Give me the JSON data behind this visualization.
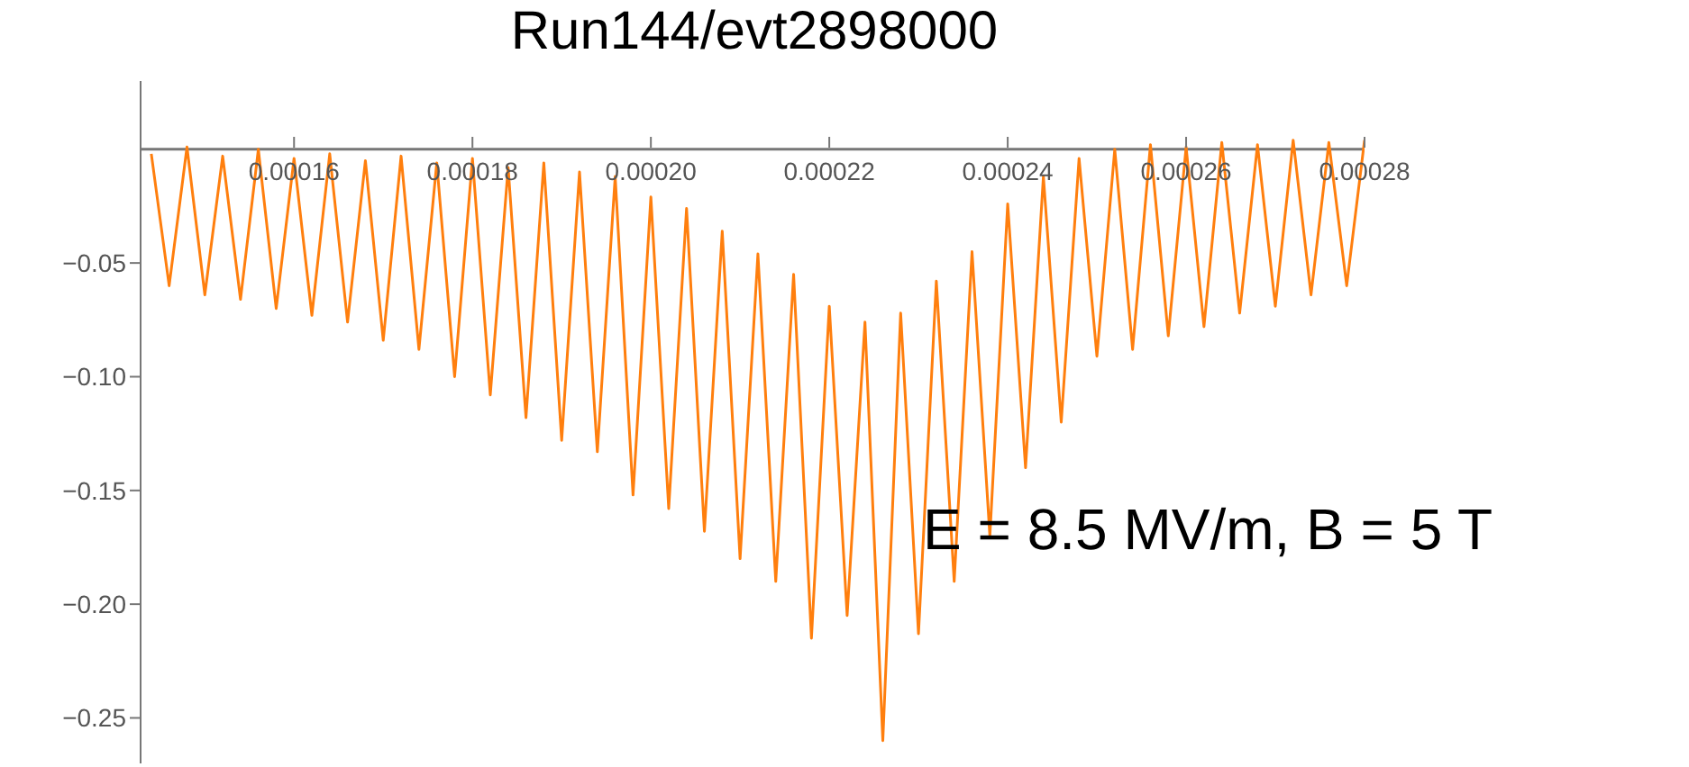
{
  "chart_data": {
    "type": "line",
    "title": "Run144/evt2898000",
    "annotations": [
      "E = 8.5 MV/m, B = 5 T"
    ],
    "x": [
      0.000144,
      0.000146,
      0.000148,
      0.00015,
      0.000152,
      0.000154,
      0.000156,
      0.000158,
      0.00016,
      0.000162,
      0.000164,
      0.000166,
      0.000168,
      0.00017,
      0.000172,
      0.000174,
      0.000176,
      0.000178,
      0.00018,
      0.000182,
      0.000184,
      0.000186,
      0.000188,
      0.00019,
      0.000192,
      0.000194,
      0.000196,
      0.000198,
      0.0002,
      0.000202,
      0.000204,
      0.000206,
      0.000208,
      0.00021,
      0.000212,
      0.000214,
      0.000216,
      0.000218,
      0.00022,
      0.000222,
      0.000224,
      0.000226,
      0.000228,
      0.00023,
      0.000232,
      0.000234,
      0.000236,
      0.000238,
      0.00024,
      0.000242,
      0.000244,
      0.000246,
      0.000248,
      0.00025,
      0.000252,
      0.000254,
      0.000256,
      0.000258,
      0.00026,
      0.000262,
      0.000264,
      0.000266,
      0.000268,
      0.00027,
      0.000272,
      0.000274,
      0.000276,
      0.000278,
      0.00028
    ],
    "values": [
      -0.002,
      -0.06,
      0.001,
      -0.064,
      -0.003,
      -0.066,
      0,
      -0.07,
      -0.004,
      -0.073,
      -0.002,
      -0.076,
      -0.005,
      -0.084,
      -0.003,
      -0.088,
      -0.006,
      -0.1,
      -0.004,
      -0.108,
      -0.008,
      -0.118,
      -0.006,
      -0.128,
      -0.01,
      -0.133,
      -0.012,
      -0.152,
      -0.021,
      -0.158,
      -0.026,
      -0.168,
      -0.036,
      -0.18,
      -0.046,
      -0.19,
      -0.055,
      -0.215,
      -0.069,
      -0.205,
      -0.076,
      -0.26,
      -0.072,
      -0.213,
      -0.058,
      -0.19,
      -0.045,
      -0.17,
      -0.024,
      -0.14,
      -0.012,
      -0.12,
      -0.004,
      -0.091,
      0,
      -0.088,
      0.002,
      -0.082,
      0.001,
      -0.078,
      0.003,
      -0.072,
      0.002,
      -0.069,
      0.004,
      -0.064,
      0.003,
      -0.06,
      0.004
    ],
    "color": "#ff7f0e",
    "xlim": [
      0.0001428,
      0.00028
    ],
    "xticks": [
      {
        "value": 0.00016,
        "label": "0.00016"
      },
      {
        "value": 0.00018,
        "label": "0.00018"
      },
      {
        "value": 0.0002,
        "label": "0.00020"
      },
      {
        "value": 0.00022,
        "label": "0.00022"
      },
      {
        "value": 0.00024,
        "label": "0.00024"
      },
      {
        "value": 0.00026,
        "label": "0.00026"
      },
      {
        "value": 0.00028,
        "label": "0.00028"
      }
    ],
    "ylim": [
      -0.27,
      0.03
    ],
    "yticks": [
      {
        "value": -0.05,
        "label": "−0.05"
      },
      {
        "value": -0.1,
        "label": "−0.10"
      },
      {
        "value": -0.15,
        "label": "−0.15"
      },
      {
        "value": -0.2,
        "label": "−0.20"
      },
      {
        "value": -0.25,
        "label": "−0.25"
      }
    ],
    "line_style": "solid"
  }
}
